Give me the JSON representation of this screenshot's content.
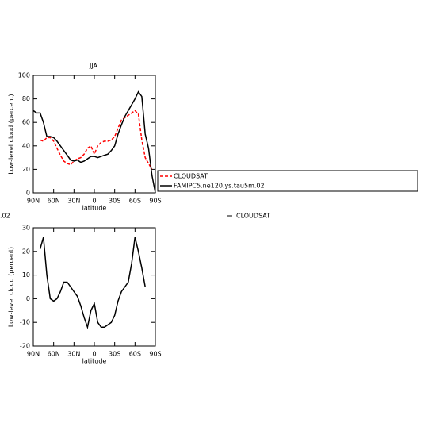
{
  "chart_data": [
    {
      "type": "line",
      "title": "JJA",
      "x_label": "latitude",
      "y_label": "Low-level cloud (percent)",
      "x": [
        90,
        85,
        80,
        75,
        70,
        65,
        60,
        55,
        50,
        45,
        40,
        35,
        30,
        25,
        20,
        15,
        10,
        5,
        0,
        -5,
        -10,
        -15,
        -20,
        -25,
        -30,
        -35,
        -40,
        -45,
        -50,
        -55,
        -60,
        -65,
        -70,
        -75,
        -80,
        -85,
        -90
      ],
      "xlim": [
        90,
        -90
      ],
      "xticks": [
        {
          "value": 90,
          "label": "90N"
        },
        {
          "value": 60,
          "label": "60N"
        },
        {
          "value": 30,
          "label": "30N"
        },
        0,
        {
          "value": -30,
          "label": "30S"
        },
        {
          "value": -60,
          "label": "60S"
        },
        {
          "value": -90,
          "label": "90S"
        }
      ],
      "ylim": [
        0,
        100
      ],
      "yticks": [
        0,
        20,
        40,
        60,
        80,
        100
      ],
      "series": [
        {
          "name": "CLOUDSAT",
          "color": "#ff0000",
          "dashed": true,
          "values": [
            null,
            null,
            45,
            44,
            47,
            47,
            44,
            38,
            32,
            27,
            25,
            24,
            27,
            29,
            30,
            33,
            38,
            40,
            33,
            40,
            43,
            44,
            44,
            45,
            48,
            55,
            62,
            64,
            66,
            68,
            70,
            67,
            45,
            30,
            25,
            20,
            null
          ]
        },
        {
          "name": "FAMIPC5.ne120.ys.tau5m.02",
          "color": "#000000",
          "dashed": false,
          "values": [
            70,
            68,
            68,
            60,
            48,
            48,
            47,
            44,
            40,
            36,
            32,
            28,
            27,
            28,
            26,
            27,
            29,
            31,
            31,
            30,
            31,
            32,
            33,
            36,
            40,
            50,
            58,
            65,
            70,
            75,
            80,
            86,
            82,
            50,
            38,
            15,
            0
          ]
        }
      ]
    },
    {
      "type": "line",
      "x_label": "latitude",
      "y_label": "Low-level cloud (percent)",
      "annotations": [
        ".02",
        "CLOUDSAT"
      ],
      "x": [
        90,
        85,
        80,
        75,
        70,
        65,
        60,
        55,
        50,
        45,
        40,
        35,
        30,
        25,
        20,
        15,
        10,
        5,
        0,
        -5,
        -10,
        -15,
        -20,
        -25,
        -30,
        -35,
        -40,
        -45,
        -50,
        -55,
        -60,
        -65,
        -70,
        -75,
        -80,
        -85,
        -90
      ],
      "xlim": [
        90,
        -90
      ],
      "xticks": [
        {
          "value": 90,
          "label": "90N"
        },
        {
          "value": 60,
          "label": "60N"
        },
        {
          "value": 30,
          "label": "30N"
        },
        0,
        {
          "value": -30,
          "label": "30S"
        },
        {
          "value": -60,
          "label": "60S"
        },
        {
          "value": -90,
          "label": "90S"
        }
      ],
      "ylim": [
        -20,
        30
      ],
      "yticks": [
        -20,
        -10,
        0,
        10,
        20,
        30
      ],
      "series": [
        {
          "color": "#000000",
          "dashed": false,
          "values": [
            null,
            null,
            21,
            26,
            10,
            0,
            -1,
            0,
            3,
            7,
            7,
            5,
            3,
            1,
            -3,
            -8,
            -12,
            -5,
            -2,
            -10,
            -12,
            -12,
            -11,
            -10,
            -7,
            -1,
            3,
            5,
            7,
            15,
            26,
            20,
            13,
            5,
            null,
            null,
            null
          ]
        }
      ]
    }
  ]
}
